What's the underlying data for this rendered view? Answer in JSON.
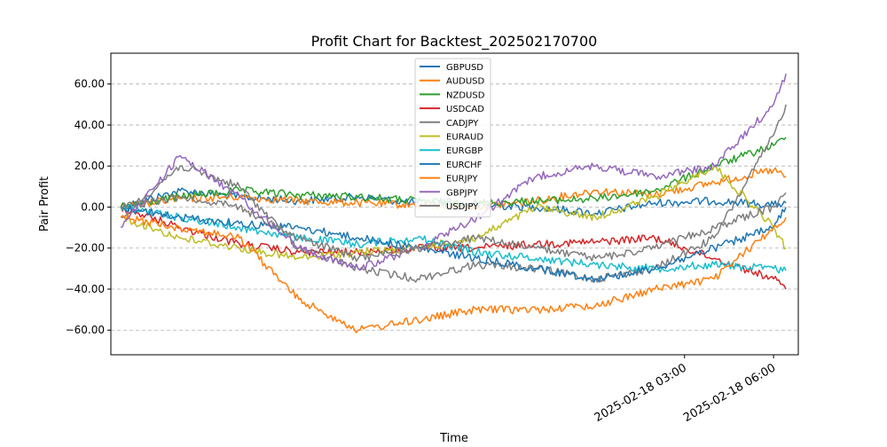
{
  "chart_data": {
    "type": "line",
    "title": "Profit Chart for Backtest_202502170700",
    "xlabel": "Time",
    "ylabel": "Pair Profit",
    "ylim": [
      -72,
      75
    ],
    "yticks": [
      -60,
      -40,
      -20,
      0,
      20,
      40,
      60
    ],
    "ytick_labels": [
      "−60.00",
      "−40.00",
      "−20.00",
      "0.00",
      "20.00",
      "40.00",
      "60.00"
    ],
    "xticks": [
      {
        "x": "2025-02-18 03:00",
        "label": "2025-02-18 03:00"
      },
      {
        "x": "2025-02-18 06:00",
        "label": "2025-02-18 06:00"
      }
    ],
    "xlim": [
      "2025-02-17 07:40",
      "2025-02-18 06:50"
    ],
    "grid": "y-dashed",
    "legend_position": "top-center",
    "series": [
      {
        "name": "GBPUSD",
        "color": "#1f77b4",
        "x": [
          "2025-02-17 08:00",
          "2025-02-17 10:00",
          "2025-02-17 12:00",
          "2025-02-17 14:00",
          "2025-02-17 16:00",
          "2025-02-17 18:00",
          "2025-02-17 20:00",
          "2025-02-17 22:00",
          "2025-02-18 00:00",
          "2025-02-18 02:00",
          "2025-02-18 04:00",
          "2025-02-18 06:00",
          "2025-02-18 06:25"
        ],
        "values": [
          0,
          8,
          5,
          3,
          5,
          2,
          1,
          0,
          -3,
          2,
          3,
          1,
          2
        ]
      },
      {
        "name": "AUDUSD",
        "color": "#ff7f0e",
        "x": [
          "2025-02-17 08:00",
          "2025-02-17 10:00",
          "2025-02-17 12:00",
          "2025-02-17 14:00",
          "2025-02-17 16:00",
          "2025-02-17 18:00",
          "2025-02-17 20:00",
          "2025-02-17 22:00",
          "2025-02-18 00:00",
          "2025-02-18 02:00",
          "2025-02-18 04:00",
          "2025-02-18 06:00",
          "2025-02-18 06:25"
        ],
        "values": [
          0,
          4,
          5,
          3,
          2,
          1,
          0,
          3,
          8,
          6,
          12,
          18,
          15
        ]
      },
      {
        "name": "NZDUSD",
        "color": "#2ca02c",
        "x": [
          "2025-02-17 08:00",
          "2025-02-17 10:00",
          "2025-02-17 12:00",
          "2025-02-17 14:00",
          "2025-02-17 16:00",
          "2025-02-17 18:00",
          "2025-02-17 20:00",
          "2025-02-17 22:00",
          "2025-02-18 00:00",
          "2025-02-18 02:00",
          "2025-02-18 04:00",
          "2025-02-18 06:00",
          "2025-02-18 06:25"
        ],
        "values": [
          0,
          5,
          8,
          6,
          5,
          3,
          2,
          3,
          4,
          8,
          20,
          30,
          34
        ]
      },
      {
        "name": "USDCAD",
        "color": "#d62728",
        "x": [
          "2025-02-17 08:00",
          "2025-02-17 10:00",
          "2025-02-17 12:00",
          "2025-02-17 14:00",
          "2025-02-17 16:00",
          "2025-02-17 18:00",
          "2025-02-17 20:00",
          "2025-02-17 22:00",
          "2025-02-18 00:00",
          "2025-02-18 02:00",
          "2025-02-18 04:00",
          "2025-02-18 06:00",
          "2025-02-18 06:25"
        ],
        "values": [
          0,
          -10,
          -18,
          -22,
          -22,
          -20,
          -20,
          -18,
          -17,
          -15,
          -25,
          -35,
          -40
        ]
      },
      {
        "name": "CADJPY",
        "color": "#7f7f7f",
        "x": [
          "2025-02-17 08:00",
          "2025-02-17 10:00",
          "2025-02-17 12:00",
          "2025-02-17 14:00",
          "2025-02-17 16:00",
          "2025-02-17 18:00",
          "2025-02-17 20:00",
          "2025-02-17 22:00",
          "2025-02-18 00:00",
          "2025-02-18 02:00",
          "2025-02-18 04:00",
          "2025-02-18 06:00",
          "2025-02-18 06:25"
        ],
        "values": [
          -5,
          20,
          10,
          -20,
          -30,
          -35,
          -28,
          -30,
          -35,
          -30,
          -15,
          35,
          50
        ]
      },
      {
        "name": "EURAUD",
        "color": "#bcbd22",
        "x": [
          "2025-02-17 08:00",
          "2025-02-17 10:00",
          "2025-02-17 12:00",
          "2025-02-17 14:00",
          "2025-02-17 16:00",
          "2025-02-17 18:00",
          "2025-02-17 20:00",
          "2025-02-17 22:00",
          "2025-02-18 00:00",
          "2025-02-18 02:00",
          "2025-02-18 04:00",
          "2025-02-18 06:00",
          "2025-02-18 06:25"
        ],
        "values": [
          -5,
          -15,
          -20,
          -25,
          -22,
          -20,
          -15,
          0,
          -5,
          5,
          20,
          -10,
          -20
        ]
      },
      {
        "name": "EURGBP",
        "color": "#17becf",
        "x": [
          "2025-02-17 08:00",
          "2025-02-17 10:00",
          "2025-02-17 12:00",
          "2025-02-17 14:00",
          "2025-02-17 16:00",
          "2025-02-17 18:00",
          "2025-02-17 20:00",
          "2025-02-17 22:00",
          "2025-02-18 00:00",
          "2025-02-18 02:00",
          "2025-02-18 04:00",
          "2025-02-18 06:00",
          "2025-02-18 06:25"
        ],
        "values": [
          0,
          -5,
          -10,
          -15,
          -18,
          -15,
          -22,
          -25,
          -28,
          -30,
          -28,
          -30,
          -31
        ]
      },
      {
        "name": "EURCHF",
        "color": "#1f77b4",
        "x": [
          "2025-02-17 08:00",
          "2025-02-17 10:00",
          "2025-02-17 12:00",
          "2025-02-17 14:00",
          "2025-02-17 16:00",
          "2025-02-17 18:00",
          "2025-02-17 20:00",
          "2025-02-17 22:00",
          "2025-02-18 00:00",
          "2025-02-18 02:00",
          "2025-02-18 04:00",
          "2025-02-18 06:00",
          "2025-02-18 06:25"
        ],
        "values": [
          0,
          -5,
          -8,
          -10,
          -15,
          -20,
          -25,
          -30,
          -35,
          -30,
          -20,
          -10,
          0
        ]
      },
      {
        "name": "EURJPY",
        "color": "#ff7f0e",
        "x": [
          "2025-02-17 08:00",
          "2025-02-17 10:00",
          "2025-02-17 12:00",
          "2025-02-17 14:00",
          "2025-02-17 16:00",
          "2025-02-17 18:00",
          "2025-02-17 20:00",
          "2025-02-17 22:00",
          "2025-02-18 00:00",
          "2025-02-18 02:00",
          "2025-02-18 04:00",
          "2025-02-18 06:00",
          "2025-02-18 06:25"
        ],
        "values": [
          -5,
          -10,
          -15,
          -45,
          -60,
          -55,
          -50,
          -50,
          -48,
          -40,
          -35,
          -10,
          -5
        ]
      },
      {
        "name": "GBPJPY",
        "color": "#9467bd",
        "x": [
          "2025-02-17 08:00",
          "2025-02-17 10:00",
          "2025-02-17 12:00",
          "2025-02-17 14:00",
          "2025-02-17 16:00",
          "2025-02-17 18:00",
          "2025-02-17 20:00",
          "2025-02-17 22:00",
          "2025-02-18 00:00",
          "2025-02-18 02:00",
          "2025-02-18 04:00",
          "2025-02-18 06:00",
          "2025-02-18 06:25"
        ],
        "values": [
          -10,
          25,
          5,
          -20,
          -30,
          -20,
          -5,
          15,
          20,
          15,
          20,
          50,
          65
        ]
      },
      {
        "name": "USDJPY",
        "color": "#7f7f7f",
        "x": [
          "2025-02-17 08:00",
          "2025-02-17 10:00",
          "2025-02-17 12:00",
          "2025-02-17 14:00",
          "2025-02-17 16:00",
          "2025-02-17 18:00",
          "2025-02-17 20:00",
          "2025-02-17 22:00",
          "2025-02-18 00:00",
          "2025-02-18 02:00",
          "2025-02-18 04:00",
          "2025-02-18 06:00",
          "2025-02-18 06:25"
        ],
        "values": [
          0,
          5,
          0,
          -15,
          -25,
          -20,
          -15,
          -20,
          -25,
          -20,
          -10,
          0,
          7
        ]
      }
    ]
  }
}
